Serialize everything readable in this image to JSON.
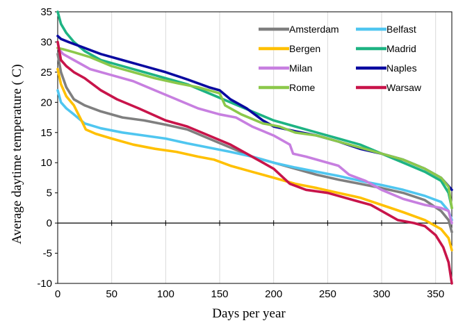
{
  "chart_data": {
    "type": "line",
    "title": "",
    "xlabel": "Days per year",
    "ylabel": "Average daytime temperature ( C)",
    "xlim": [
      0,
      365
    ],
    "ylim": [
      -10,
      35
    ],
    "x_ticks": [
      0,
      50,
      100,
      150,
      200,
      250,
      300,
      350
    ],
    "y_ticks": [
      -10,
      -5,
      0,
      5,
      10,
      15,
      20,
      25,
      30,
      35
    ],
    "grid": "vertical",
    "legend_position": "top-right",
    "series": [
      {
        "name": "Amsterdam",
        "color": "#7f7f7f",
        "points": [
          [
            0,
            28
          ],
          [
            3,
            25
          ],
          [
            8,
            22.5
          ],
          [
            15,
            20.5
          ],
          [
            25,
            19.5
          ],
          [
            40,
            18.5
          ],
          [
            60,
            17.5
          ],
          [
            80,
            17
          ],
          [
            100,
            16.3
          ],
          [
            120,
            15.5
          ],
          [
            140,
            14
          ],
          [
            160,
            12.5
          ],
          [
            180,
            11
          ],
          [
            200,
            10
          ],
          [
            220,
            9
          ],
          [
            240,
            8
          ],
          [
            260,
            7.2
          ],
          [
            280,
            6.5
          ],
          [
            300,
            5.8
          ],
          [
            320,
            5
          ],
          [
            340,
            3.8
          ],
          [
            355,
            2
          ],
          [
            362,
            0.5
          ],
          [
            365,
            -1.5
          ]
        ]
      },
      {
        "name": "Belfast",
        "color": "#4fc6f0",
        "points": [
          [
            0,
            22
          ],
          [
            3,
            20
          ],
          [
            8,
            19
          ],
          [
            15,
            18
          ],
          [
            25,
            16.5
          ],
          [
            40,
            15.7
          ],
          [
            60,
            15
          ],
          [
            80,
            14.5
          ],
          [
            100,
            14
          ],
          [
            120,
            13.2
          ],
          [
            140,
            12.5
          ],
          [
            160,
            11.8
          ],
          [
            180,
            11
          ],
          [
            200,
            10
          ],
          [
            220,
            9.2
          ],
          [
            240,
            8.5
          ],
          [
            260,
            7.8
          ],
          [
            280,
            7
          ],
          [
            300,
            6.3
          ],
          [
            320,
            5.5
          ],
          [
            340,
            4.5
          ],
          [
            355,
            3.5
          ],
          [
            362,
            2
          ],
          [
            365,
            0.5
          ]
        ]
      },
      {
        "name": "Bergen",
        "color": "#ffc000",
        "points": [
          [
            0,
            25.5
          ],
          [
            3,
            23
          ],
          [
            8,
            21
          ],
          [
            15,
            19.5
          ],
          [
            22,
            17
          ],
          [
            26,
            15.5
          ],
          [
            35,
            14.8
          ],
          [
            50,
            14
          ],
          [
            70,
            13
          ],
          [
            90,
            12.3
          ],
          [
            110,
            11.8
          ],
          [
            130,
            11
          ],
          [
            145,
            10.5
          ],
          [
            160,
            9.5
          ],
          [
            180,
            8.5
          ],
          [
            200,
            7.5
          ],
          [
            220,
            6.5
          ],
          [
            240,
            5.8
          ],
          [
            260,
            5
          ],
          [
            280,
            4.2
          ],
          [
            300,
            3
          ],
          [
            320,
            1.8
          ],
          [
            340,
            0.5
          ],
          [
            355,
            -1
          ],
          [
            362,
            -2.5
          ],
          [
            365,
            -4.5
          ]
        ]
      },
      {
        "name": "Madrid",
        "color": "#1eb383",
        "points": [
          [
            0,
            35
          ],
          [
            3,
            33
          ],
          [
            8,
            31.5
          ],
          [
            15,
            30
          ],
          [
            25,
            28.5
          ],
          [
            40,
            27
          ],
          [
            60,
            26
          ],
          [
            80,
            25
          ],
          [
            100,
            24
          ],
          [
            120,
            23
          ],
          [
            140,
            21.5
          ],
          [
            160,
            20
          ],
          [
            180,
            18.5
          ],
          [
            200,
            17
          ],
          [
            220,
            16
          ],
          [
            240,
            15
          ],
          [
            260,
            14
          ],
          [
            280,
            13
          ],
          [
            300,
            11.5
          ],
          [
            320,
            10
          ],
          [
            340,
            8.5
          ],
          [
            355,
            7
          ],
          [
            362,
            5
          ],
          [
            365,
            2.5
          ]
        ]
      },
      {
        "name": "Milan",
        "color": "#c77fe0",
        "points": [
          [
            0,
            29
          ],
          [
            5,
            28
          ],
          [
            15,
            27
          ],
          [
            30,
            25.5
          ],
          [
            50,
            24.5
          ],
          [
            70,
            23.5
          ],
          [
            90,
            22
          ],
          [
            110,
            20.5
          ],
          [
            130,
            19
          ],
          [
            150,
            18
          ],
          [
            165,
            17.5
          ],
          [
            180,
            16
          ],
          [
            200,
            14.5
          ],
          [
            215,
            13
          ],
          [
            218,
            11.5
          ],
          [
            230,
            11
          ],
          [
            240,
            10.5
          ],
          [
            260,
            9.5
          ],
          [
            270,
            8
          ],
          [
            285,
            7
          ],
          [
            300,
            5.5
          ],
          [
            320,
            4
          ],
          [
            340,
            3
          ],
          [
            355,
            2.5
          ],
          [
            362,
            2
          ],
          [
            365,
            0
          ]
        ]
      },
      {
        "name": "Naples",
        "color": "#0a0aa0",
        "points": [
          [
            0,
            31
          ],
          [
            3,
            30.5
          ],
          [
            10,
            30
          ],
          [
            25,
            29
          ],
          [
            40,
            28
          ],
          [
            60,
            27
          ],
          [
            80,
            26
          ],
          [
            100,
            25
          ],
          [
            120,
            23.8
          ],
          [
            140,
            22.5
          ],
          [
            150,
            22
          ],
          [
            160,
            20.5
          ],
          [
            175,
            19
          ],
          [
            190,
            17
          ],
          [
            200,
            16
          ],
          [
            220,
            15.2
          ],
          [
            240,
            14.5
          ],
          [
            260,
            13.5
          ],
          [
            280,
            12.3
          ],
          [
            300,
            11.5
          ],
          [
            320,
            10.5
          ],
          [
            340,
            9
          ],
          [
            355,
            7.5
          ],
          [
            365,
            5.5
          ]
        ]
      },
      {
        "name": "Rome",
        "color": "#8cc84b",
        "points": [
          [
            0,
            29
          ],
          [
            5,
            28.8
          ],
          [
            15,
            28.3
          ],
          [
            30,
            27.5
          ],
          [
            50,
            26
          ],
          [
            70,
            25
          ],
          [
            90,
            24
          ],
          [
            110,
            23.2
          ],
          [
            130,
            22.5
          ],
          [
            150,
            21.5
          ],
          [
            155,
            19.5
          ],
          [
            170,
            18
          ],
          [
            190,
            16.5
          ],
          [
            205,
            16
          ],
          [
            220,
            15
          ],
          [
            240,
            14.5
          ],
          [
            260,
            13.5
          ],
          [
            280,
            12.5
          ],
          [
            300,
            11.5
          ],
          [
            320,
            10.5
          ],
          [
            340,
            9
          ],
          [
            355,
            7.5
          ],
          [
            362,
            6
          ],
          [
            365,
            2.5
          ]
        ]
      },
      {
        "name": "Warsaw",
        "color": "#c8144a",
        "points": [
          [
            0,
            30
          ],
          [
            3,
            27
          ],
          [
            8,
            26
          ],
          [
            15,
            25
          ],
          [
            25,
            24
          ],
          [
            40,
            22
          ],
          [
            55,
            20.5
          ],
          [
            75,
            19
          ],
          [
            100,
            17
          ],
          [
            120,
            16
          ],
          [
            140,
            14.5
          ],
          [
            160,
            13
          ],
          [
            180,
            11
          ],
          [
            200,
            9
          ],
          [
            215,
            6.5
          ],
          [
            230,
            5.5
          ],
          [
            250,
            5
          ],
          [
            270,
            4
          ],
          [
            290,
            3
          ],
          [
            300,
            2
          ],
          [
            315,
            0.5
          ],
          [
            330,
            0
          ],
          [
            340,
            -0.5
          ],
          [
            350,
            -2
          ],
          [
            357,
            -4
          ],
          [
            362,
            -6.5
          ],
          [
            365,
            -10
          ]
        ]
      }
    ]
  }
}
